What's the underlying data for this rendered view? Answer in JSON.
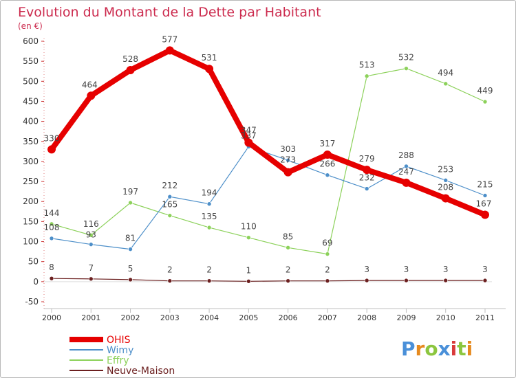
{
  "title": "Evolution du Montant de la Dette par Habitant",
  "subtitle": "(en €)",
  "logo_text": "Proxiti",
  "chart_data": {
    "type": "line",
    "title": "Evolution du Montant de la Dette par Habitant",
    "subtitle": "(en €)",
    "x": [
      "2000",
      "2001",
      "2002",
      "2003",
      "2004",
      "2005",
      "2006",
      "2007",
      "2008",
      "2009",
      "2010",
      "2011"
    ],
    "ylim": [
      -50,
      600
    ],
    "yticks": [
      -50,
      0,
      50,
      100,
      150,
      200,
      250,
      300,
      350,
      400,
      450,
      500,
      550,
      600
    ],
    "grid": false,
    "legend_position": "bottom-left",
    "series": [
      {
        "name": "OHIS",
        "color": "#e60000",
        "values": [
          330,
          464,
          528,
          577,
          531,
          347,
          273,
          317,
          279,
          247,
          208,
          167
        ]
      },
      {
        "name": "Wimy",
        "color": "#4d8fc9",
        "values": [
          108,
          93,
          81,
          212,
          194,
          337,
          303,
          266,
          232,
          288,
          253,
          215
        ]
      },
      {
        "name": "Effry",
        "color": "#8cd15a",
        "values": [
          144,
          116,
          197,
          165,
          135,
          110,
          85,
          69,
          513,
          532,
          494,
          449
        ]
      },
      {
        "name": "Neuve-Maison",
        "color": "#6b1f1f",
        "values": [
          8,
          7,
          5,
          2,
          2,
          1,
          2,
          2,
          3,
          3,
          3,
          3
        ]
      }
    ]
  }
}
